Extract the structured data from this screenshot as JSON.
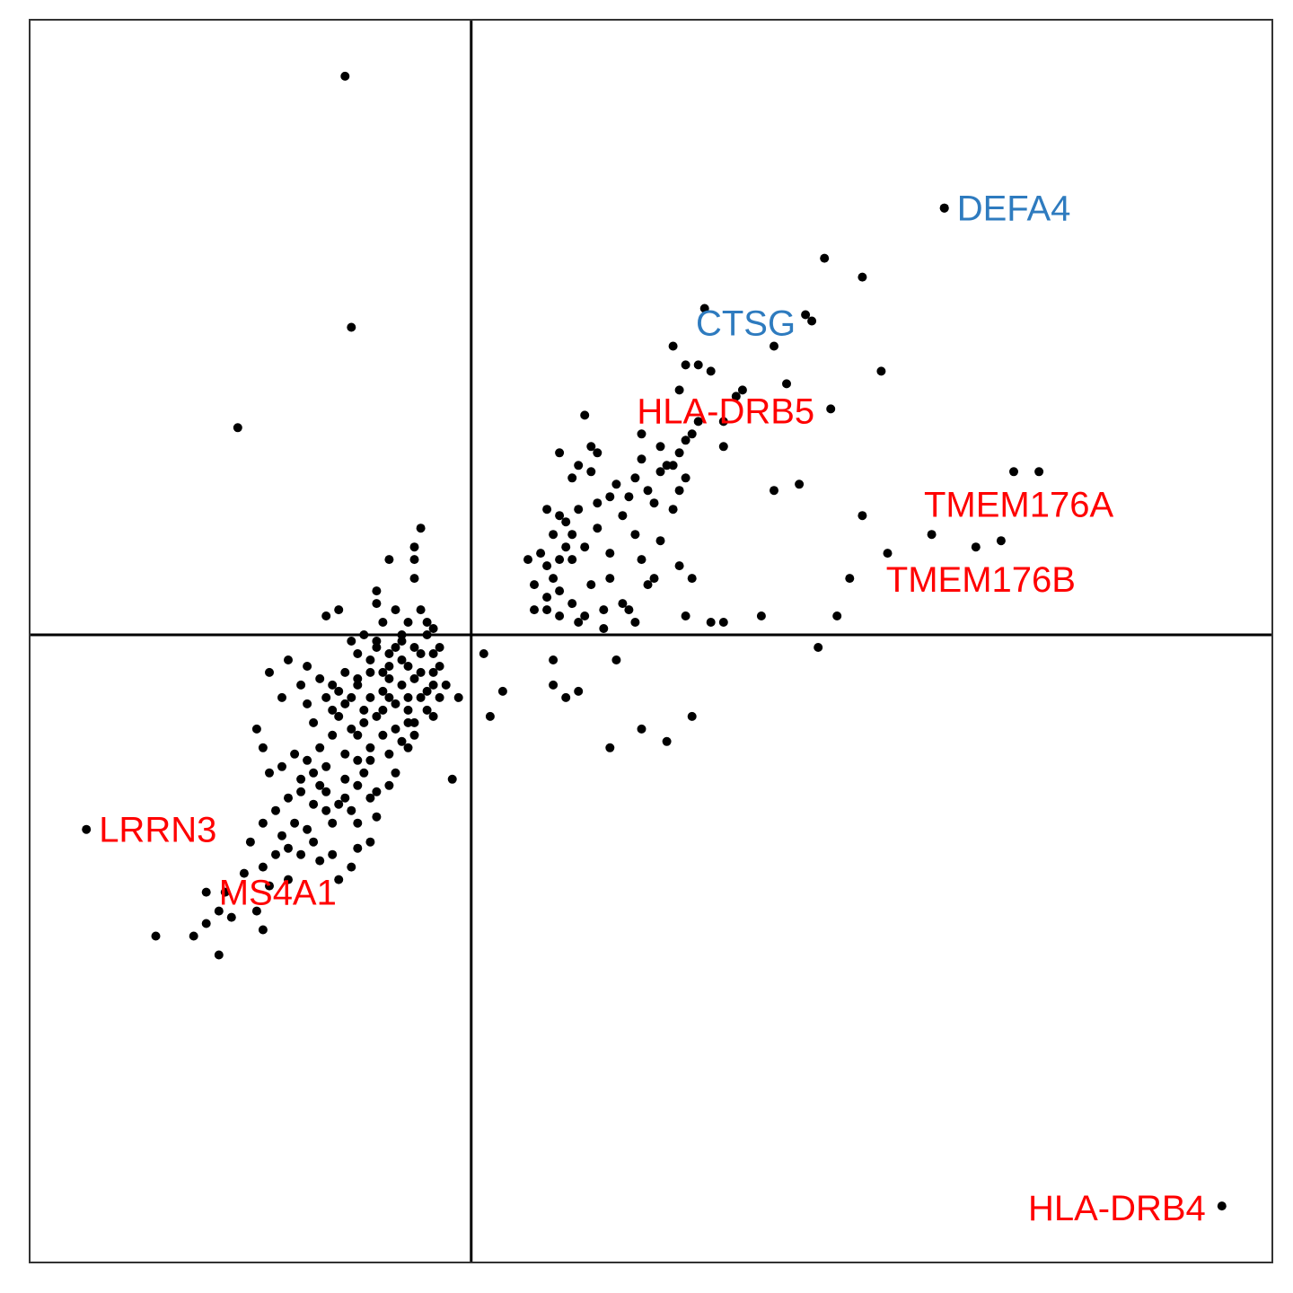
{
  "chart_data": {
    "type": "scatter",
    "title": "",
    "xlabel": "",
    "ylabel": "",
    "xlim": [
      -7.0,
      12.7
    ],
    "ylim": [
      -10.0,
      9.8
    ],
    "grid": false,
    "reference_lines": {
      "x": 0,
      "y": 0
    },
    "point_color": "#000000",
    "colors": {
      "red": "#ff0000",
      "blue": "#2e7bbf",
      "axis": "#000000",
      "frame": "#333333"
    },
    "labeled_points": [
      {
        "gene": "DEFA4",
        "x": 7.5,
        "y": 6.8,
        "color": "#2e7bbf",
        "side": "right"
      },
      {
        "gene": "CTSG",
        "x": 5.4,
        "y": 5.0,
        "color": "#2e7bbf",
        "side": "left"
      },
      {
        "gene": "HLA-DRB5",
        "x": 5.7,
        "y": 3.6,
        "color": "#ff0000",
        "side": "left"
      },
      {
        "gene": "TMEM176A",
        "x": 8.6,
        "y": 2.6,
        "color": "#ff0000",
        "side": "below"
      },
      {
        "gene": "TMEM176B",
        "x": 8.0,
        "y": 1.4,
        "color": "#ff0000",
        "side": "below"
      },
      {
        "gene": "LRRN3",
        "x": -6.1,
        "y": -3.1,
        "color": "#ff0000",
        "side": "right"
      },
      {
        "gene": "MS4A1",
        "x": -4.2,
        "y": -4.1,
        "color": "#ff0000",
        "side": "right"
      },
      {
        "gene": "HLA-DRB4",
        "x": 11.9,
        "y": -9.1,
        "color": "#ff0000",
        "side": "left"
      }
    ],
    "points": [
      [
        -2.0,
        8.9
      ],
      [
        7.5,
        6.8
      ],
      [
        5.6,
        6.0
      ],
      [
        6.2,
        5.7
      ],
      [
        5.3,
        5.1
      ],
      [
        3.7,
        5.2
      ],
      [
        4.8,
        4.6
      ],
      [
        6.5,
        4.2
      ],
      [
        5.0,
        4.0
      ],
      [
        3.2,
        4.6
      ],
      [
        3.4,
        4.3
      ],
      [
        3.6,
        4.3
      ],
      [
        3.8,
        4.2
      ],
      [
        3.3,
        3.9
      ],
      [
        4.3,
        3.9
      ],
      [
        4.2,
        3.8
      ],
      [
        4.0,
        3.4
      ],
      [
        3.6,
        3.4
      ],
      [
        3.5,
        3.2
      ],
      [
        3.4,
        3.1
      ],
      [
        2.7,
        3.2
      ],
      [
        3.3,
        2.9
      ],
      [
        3.0,
        3.0
      ],
      [
        3.2,
        2.7
      ],
      [
        4.0,
        3.0
      ],
      [
        4.8,
        2.3
      ],
      [
        1.8,
        3.5
      ],
      [
        1.9,
        3.0
      ],
      [
        2.0,
        2.9
      ],
      [
        2.7,
        2.8
      ],
      [
        3.1,
        2.7
      ],
      [
        3.4,
        2.5
      ],
      [
        3.0,
        2.6
      ],
      [
        2.6,
        2.5
      ],
      [
        1.4,
        2.9
      ],
      [
        1.6,
        2.5
      ],
      [
        2.8,
        2.3
      ],
      [
        2.9,
        2.1
      ],
      [
        3.2,
        2.0
      ],
      [
        3.3,
        2.3
      ],
      [
        1.7,
        2.7
      ],
      [
        1.9,
        2.6
      ],
      [
        2.3,
        2.4
      ],
      [
        2.5,
        2.2
      ],
      [
        2.2,
        2.2
      ],
      [
        1.4,
        1.9
      ],
      [
        1.5,
        1.8
      ],
      [
        1.6,
        1.6
      ],
      [
        1.8,
        1.4
      ],
      [
        1.4,
        1.2
      ],
      [
        1.3,
        1.6
      ],
      [
        1.2,
        2.0
      ],
      [
        1.2,
        1.1
      ],
      [
        0.9,
        1.2
      ],
      [
        1.0,
        0.8
      ],
      [
        1.2,
        0.4
      ],
      [
        1.4,
        0.3
      ],
      [
        1.7,
        0.2
      ],
      [
        2.1,
        0.4
      ],
      [
        2.4,
        0.5
      ],
      [
        2.2,
        0.9
      ],
      [
        1.9,
        0.8
      ],
      [
        1.6,
        1.2
      ],
      [
        2.7,
        1.2
      ],
      [
        2.9,
        0.9
      ],
      [
        3.3,
        1.1
      ],
      [
        3.5,
        0.9
      ],
      [
        3.4,
        0.3
      ],
      [
        2.8,
        0.8
      ],
      [
        2.5,
        0.4
      ],
      [
        2.1,
        0.1
      ],
      [
        1.8,
        0.3
      ],
      [
        1.2,
        0.6
      ],
      [
        1.0,
        0.4
      ],
      [
        1.1,
        1.3
      ],
      [
        1.3,
        0.9
      ],
      [
        1.6,
        0.5
      ],
      [
        1.4,
        0.7
      ],
      [
        1.5,
        1.4
      ],
      [
        2.0,
        1.7
      ],
      [
        2.2,
        1.3
      ],
      [
        2.6,
        1.6
      ],
      [
        2.4,
        1.9
      ],
      [
        2.0,
        2.1
      ],
      [
        1.7,
        2.0
      ],
      [
        3.0,
        1.5
      ],
      [
        2.6,
        0.2
      ],
      [
        3.8,
        0.2
      ],
      [
        6.2,
        1.9
      ],
      [
        6.6,
        1.3
      ],
      [
        5.2,
        2.4
      ],
      [
        8.4,
        1.5
      ],
      [
        9.0,
        2.6
      ],
      [
        7.3,
        1.6
      ],
      [
        6.0,
        0.9
      ],
      [
        5.8,
        0.3
      ],
      [
        4.0,
        0.2
      ],
      [
        4.6,
        0.3
      ],
      [
        5.5,
        -0.2
      ],
      [
        3.5,
        -1.3
      ],
      [
        3.1,
        -1.7
      ],
      [
        2.2,
        -1.8
      ],
      [
        0.5,
        -0.9
      ],
      [
        1.3,
        -0.4
      ],
      [
        1.3,
        -0.8
      ],
      [
        1.7,
        -0.9
      ],
      [
        1.5,
        -1.0
      ],
      [
        2.3,
        -0.4
      ],
      [
        2.7,
        -1.5
      ],
      [
        0.2,
        -0.3
      ],
      [
        -0.2,
        -1.0
      ],
      [
        0.3,
        -1.3
      ],
      [
        -1.9,
        4.9
      ],
      [
        -3.7,
        3.3
      ],
      [
        -0.8,
        1.7
      ],
      [
        -0.9,
        1.4
      ],
      [
        -0.9,
        1.2
      ],
      [
        -1.3,
        1.2
      ],
      [
        -0.9,
        0.9
      ],
      [
        -1.5,
        0.7
      ],
      [
        -2.1,
        0.4
      ],
      [
        -2.3,
        0.3
      ],
      [
        -1.5,
        0.5
      ],
      [
        -1.2,
        0.4
      ],
      [
        -1.0,
        0.2
      ],
      [
        -0.8,
        0.4
      ],
      [
        -0.7,
        0.2
      ],
      [
        -0.7,
        0.0
      ],
      [
        -0.9,
        -0.2
      ],
      [
        -0.6,
        -0.3
      ],
      [
        -0.5,
        -0.5
      ],
      [
        -0.6,
        -0.8
      ],
      [
        -0.8,
        -1.0
      ],
      [
        -1.0,
        -1.2
      ],
      [
        -1.2,
        -1.5
      ],
      [
        -1.4,
        -1.6
      ],
      [
        -1.6,
        -1.8
      ],
      [
        -1.8,
        -2.0
      ],
      [
        -1.3,
        -1.9
      ],
      [
        -1.1,
        -1.7
      ],
      [
        -0.9,
        -1.6
      ],
      [
        -1.0,
        -1.4
      ],
      [
        -1.3,
        -1.0
      ],
      [
        -1.1,
        -0.8
      ],
      [
        -1.4,
        -0.6
      ],
      [
        -1.6,
        -0.4
      ],
      [
        -1.3,
        -0.3
      ],
      [
        -1.1,
        -0.1
      ],
      [
        -1.5,
        -0.2
      ],
      [
        -1.8,
        -0.3
      ],
      [
        -2.0,
        -0.6
      ],
      [
        -1.8,
        -0.8
      ],
      [
        -1.9,
        -1.0
      ],
      [
        -2.1,
        -1.3
      ],
      [
        -1.7,
        -1.2
      ],
      [
        -1.9,
        -1.5
      ],
      [
        -2.2,
        -1.6
      ],
      [
        -2.4,
        -1.8
      ],
      [
        -2.6,
        -2.0
      ],
      [
        -2.3,
        -2.1
      ],
      [
        -2.0,
        -2.3
      ],
      [
        -1.7,
        -2.2
      ],
      [
        -2.4,
        -2.4
      ],
      [
        -2.7,
        -2.5
      ],
      [
        -2.5,
        -2.7
      ],
      [
        -2.9,
        -2.6
      ],
      [
        -3.1,
        -2.8
      ],
      [
        -2.8,
        -3.0
      ],
      [
        -3.3,
        -3.0
      ],
      [
        -3.0,
        -3.2
      ],
      [
        -3.5,
        -3.3
      ],
      [
        -2.6,
        -3.1
      ],
      [
        -2.3,
        -2.8
      ],
      [
        -2.2,
        -3.0
      ],
      [
        -1.6,
        -3.3
      ],
      [
        -1.5,
        -2.9
      ],
      [
        -2.0,
        -2.6
      ],
      [
        -2.3,
        -2.5
      ],
      [
        -1.9,
        -2.8
      ],
      [
        -1.6,
        -2.6
      ],
      [
        -2.5,
        -2.2
      ],
      [
        -2.7,
        -2.3
      ],
      [
        -2.8,
        -1.9
      ],
      [
        -3.0,
        -2.1
      ],
      [
        -3.2,
        -2.2
      ],
      [
        -3.3,
        -1.8
      ],
      [
        -2.5,
        -1.4
      ],
      [
        -2.6,
        -1.1
      ],
      [
        -2.3,
        -1.0
      ],
      [
        -2.1,
        -0.9
      ],
      [
        -2.4,
        -0.7
      ],
      [
        -2.7,
        -0.8
      ],
      [
        -3.0,
        -1.0
      ],
      [
        -3.2,
        -0.6
      ],
      [
        -2.9,
        -0.4
      ],
      [
        -2.6,
        -0.5
      ],
      [
        -2.2,
        -1.2
      ],
      [
        -1.8,
        -1.6
      ],
      [
        -2.0,
        -1.9
      ],
      [
        -3.4,
        -1.5
      ],
      [
        -3.3,
        -3.7
      ],
      [
        -3.6,
        -3.8
      ],
      [
        -3.2,
        -4.0
      ],
      [
        -3.9,
        -4.1
      ],
      [
        -4.0,
        -4.4
      ],
      [
        -3.8,
        -4.5
      ],
      [
        -3.4,
        -4.4
      ],
      [
        -4.2,
        -4.6
      ],
      [
        -5.0,
        -4.8
      ],
      [
        -4.4,
        -4.8
      ],
      [
        -4.0,
        -5.1
      ],
      [
        -3.3,
        -4.7
      ],
      [
        -1.8,
        -3.4
      ],
      [
        -2.2,
        -3.5
      ],
      [
        -1.9,
        -3.7
      ],
      [
        -2.9,
        -3.9
      ],
      [
        -2.4,
        -3.6
      ],
      [
        -2.1,
        -3.9
      ],
      [
        -0.3,
        -2.3
      ],
      [
        -0.9,
        -1.4
      ],
      [
        -0.6,
        -1.3
      ],
      [
        -1.2,
        -2.2
      ],
      [
        -1.5,
        -2.5
      ],
      [
        -1.6,
        -2.0
      ],
      [
        -1.4,
        -1.2
      ],
      [
        -1.0,
        -1.0
      ],
      [
        -0.8,
        -0.6
      ],
      [
        -0.4,
        -0.8
      ],
      [
        -0.5,
        -0.2
      ],
      [
        -0.6,
        0.1
      ],
      [
        -1.1,
        0.0
      ],
      [
        -1.2,
        -0.2
      ],
      [
        -1.4,
        0.2
      ],
      [
        -1.7,
        0.0
      ],
      [
        -1.9,
        -0.1
      ],
      [
        -1.6,
        -0.6
      ],
      [
        -1.3,
        -0.7
      ],
      [
        -1.5,
        -1.3
      ],
      [
        -1.7,
        -1.4
      ],
      [
        -2.0,
        -1.1
      ],
      [
        -2.2,
        -0.8
      ],
      [
        -1.8,
        -0.7
      ],
      [
        -1.6,
        -1.0
      ],
      [
        -1.4,
        -0.9
      ],
      [
        -1.2,
        -1.1
      ],
      [
        -1.0,
        -0.5
      ],
      [
        -0.8,
        -0.3
      ],
      [
        -0.7,
        -0.9
      ],
      [
        -0.9,
        -0.7
      ],
      [
        -1.1,
        -0.4
      ],
      [
        -1.3,
        -0.5
      ],
      [
        -1.5,
        -0.1
      ],
      [
        -0.6,
        -0.6
      ],
      [
        -0.5,
        -1.0
      ],
      [
        -0.7,
        -1.2
      ],
      [
        -1.0,
        -1.8
      ],
      [
        -1.3,
        -2.4
      ],
      [
        -1.8,
        -2.4
      ],
      [
        -2.1,
        -2.7
      ],
      [
        -2.5,
        -3.3
      ],
      [
        -2.9,
        -3.4
      ],
      [
        -2.7,
        -3.5
      ],
      [
        -3.1,
        -3.5
      ],
      [
        -1.8,
        -3.0
      ]
    ]
  }
}
